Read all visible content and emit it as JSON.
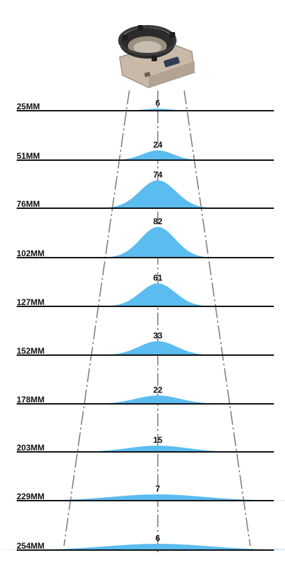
{
  "colors": {
    "baseline": "#111111",
    "distribution": "#5bbcf0",
    "beam": "#777777",
    "background": "#ffffff"
  },
  "product_image": "ring-light-device-icon",
  "rows": [
    {
      "distance": "25MM",
      "value": "6"
    },
    {
      "distance": "51MM",
      "value": "24"
    },
    {
      "distance": "76MM",
      "value": "74"
    },
    {
      "distance": "102MM",
      "value": "82"
    },
    {
      "distance": "127MM",
      "value": "61"
    },
    {
      "distance": "152MM",
      "value": "33"
    },
    {
      "distance": "178MM",
      "value": "22"
    },
    {
      "distance": "203MM",
      "value": "15"
    },
    {
      "distance": "229MM",
      "value": "7"
    },
    {
      "distance": "254MM",
      "value": "6"
    }
  ]
}
